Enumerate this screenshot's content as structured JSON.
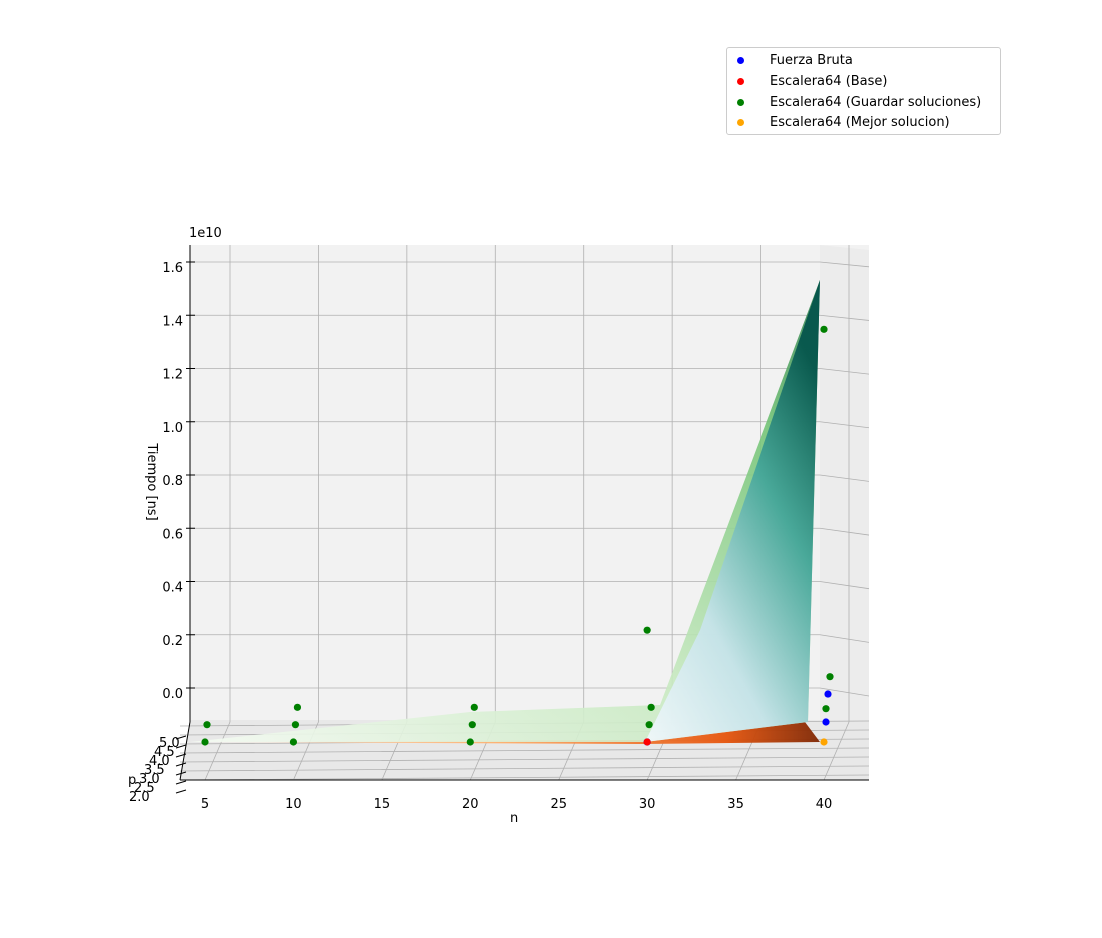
{
  "chart_data": {
    "type": "scatter",
    "projection": "3d",
    "xlabel": "n",
    "ylabel": "p",
    "zlabel": "Tiempo [ns]",
    "offset_text": "1e10",
    "x_ticks": [
      "5",
      "10",
      "15",
      "20",
      "25",
      "30",
      "35",
      "40"
    ],
    "y_ticks": [
      "2.0",
      "2.5",
      "3.0",
      "3.5",
      "4.0",
      "4.5",
      "5.0"
    ],
    "z_ticks": [
      "0.0",
      "0.2",
      "0.4",
      "0.6",
      "0.8",
      "1.0",
      "1.2",
      "1.4",
      "1.6"
    ],
    "grid": true,
    "legend_position": "top-right",
    "colors": {
      "fuerza_bruta": "#0000ff",
      "base": "#ff0000",
      "guardar": "#008000",
      "mejor": "#ffa500",
      "surface_green": "#2e7d4f",
      "surface_blue": "#1b6b5a",
      "surface_orange": "#e65100"
    },
    "series": [
      {
        "name": "Fuerza Bruta",
        "color": "#0000ff",
        "points": [
          {
            "x": 30,
            "y": 2,
            "z": 0.0
          },
          {
            "x": 40,
            "y": 3,
            "z": 0.01
          },
          {
            "x": 40,
            "y": 4,
            "z": 0.05
          }
        ]
      },
      {
        "name": "Escalera64 (Base)",
        "color": "#ff0000",
        "points": [
          {
            "x": 30,
            "y": 2,
            "z": 0.0
          }
        ]
      },
      {
        "name": "Escalera64 (Guardar soluciones)",
        "color": "#008000",
        "points": [
          {
            "x": 5,
            "y": 2,
            "z": 0.0
          },
          {
            "x": 5,
            "y": 3,
            "z": 0.0
          },
          {
            "x": 10,
            "y": 2,
            "z": 0.0
          },
          {
            "x": 10,
            "y": 3,
            "z": 0.0
          },
          {
            "x": 10,
            "y": 4,
            "z": 0.0
          },
          {
            "x": 20,
            "y": 2,
            "z": 0.0
          },
          {
            "x": 20,
            "y": 3,
            "z": 0.0
          },
          {
            "x": 20,
            "y": 4,
            "z": 0.0
          },
          {
            "x": 30,
            "y": 3,
            "z": 0.0
          },
          {
            "x": 30,
            "y": 4,
            "z": 0.0
          },
          {
            "x": 30,
            "y": 2,
            "z": 0.42
          },
          {
            "x": 40,
            "y": 3,
            "z": 0.06
          },
          {
            "x": 40,
            "y": 2,
            "z": 1.55
          },
          {
            "x": 40,
            "y": 5,
            "z": 0.05
          }
        ]
      },
      {
        "name": "Escalera64 (Mejor solucion)",
        "color": "#ffa500",
        "points": [
          {
            "x": 40,
            "y": 2,
            "z": 0.0
          }
        ]
      }
    ]
  }
}
